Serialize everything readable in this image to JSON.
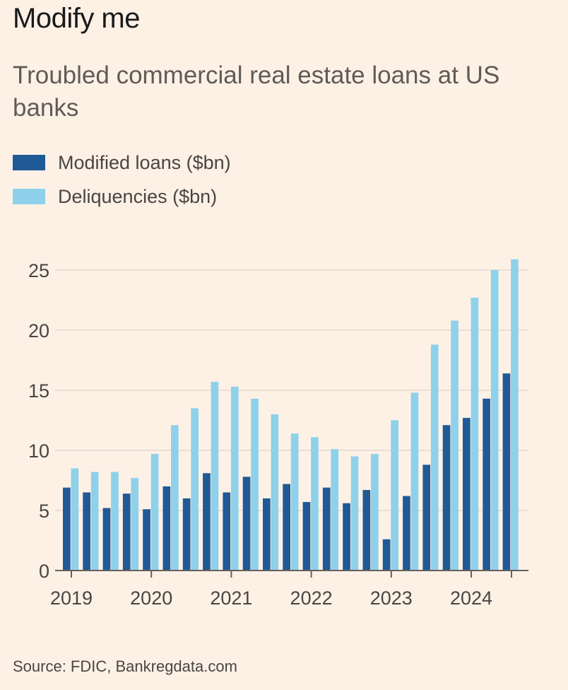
{
  "title": "Modify me",
  "subtitle": "Troubled commercial real estate loans at US banks",
  "source": "Source: FDIC, Bankregdata.com",
  "colors": {
    "modified": "#1f5a96",
    "delinquencies": "#8fd1ea",
    "background": "#fdf1e6",
    "grid": "#e5d9cf"
  },
  "chart_data": {
    "type": "bar",
    "title": "Troubled commercial real estate loans at US banks",
    "xlabel": "",
    "ylabel": "",
    "ylim": [
      0,
      26
    ],
    "yticks": [
      0,
      5,
      10,
      15,
      20,
      25
    ],
    "xtick_labels": [
      "2019",
      "2020",
      "2021",
      "2022",
      "2023",
      "2024"
    ],
    "grid": true,
    "legend_position": "top-left",
    "categories": [
      "Q1 2019",
      "Q2 2019",
      "Q3 2019",
      "Q4 2019",
      "Q1 2020",
      "Q2 2020",
      "Q3 2020",
      "Q4 2020",
      "Q1 2021",
      "Q2 2021",
      "Q3 2021",
      "Q4 2021",
      "Q1 2022",
      "Q2 2022",
      "Q3 2022",
      "Q4 2022",
      "Q1 2023",
      "Q2 2023",
      "Q3 2023",
      "Q4 2023",
      "Q1 2024",
      "Q2 2024",
      "Q3 2024"
    ],
    "series": [
      {
        "name": "Modified loans ($bn)",
        "values": [
          6.9,
          6.5,
          5.2,
          6.4,
          5.1,
          7.0,
          6.0,
          8.1,
          6.5,
          7.8,
          6.0,
          7.2,
          5.7,
          6.9,
          5.6,
          6.7,
          2.6,
          6.2,
          8.8,
          12.1,
          12.7,
          14.3,
          16.4
        ]
      },
      {
        "name": "Deliquencies ($bn)",
        "values": [
          8.5,
          8.2,
          8.2,
          7.7,
          9.7,
          12.1,
          13.5,
          15.7,
          15.3,
          14.3,
          13.0,
          11.4,
          11.1,
          10.1,
          9.5,
          9.7,
          12.5,
          14.8,
          18.8,
          20.8,
          22.7,
          25.0,
          25.9
        ]
      }
    ]
  }
}
